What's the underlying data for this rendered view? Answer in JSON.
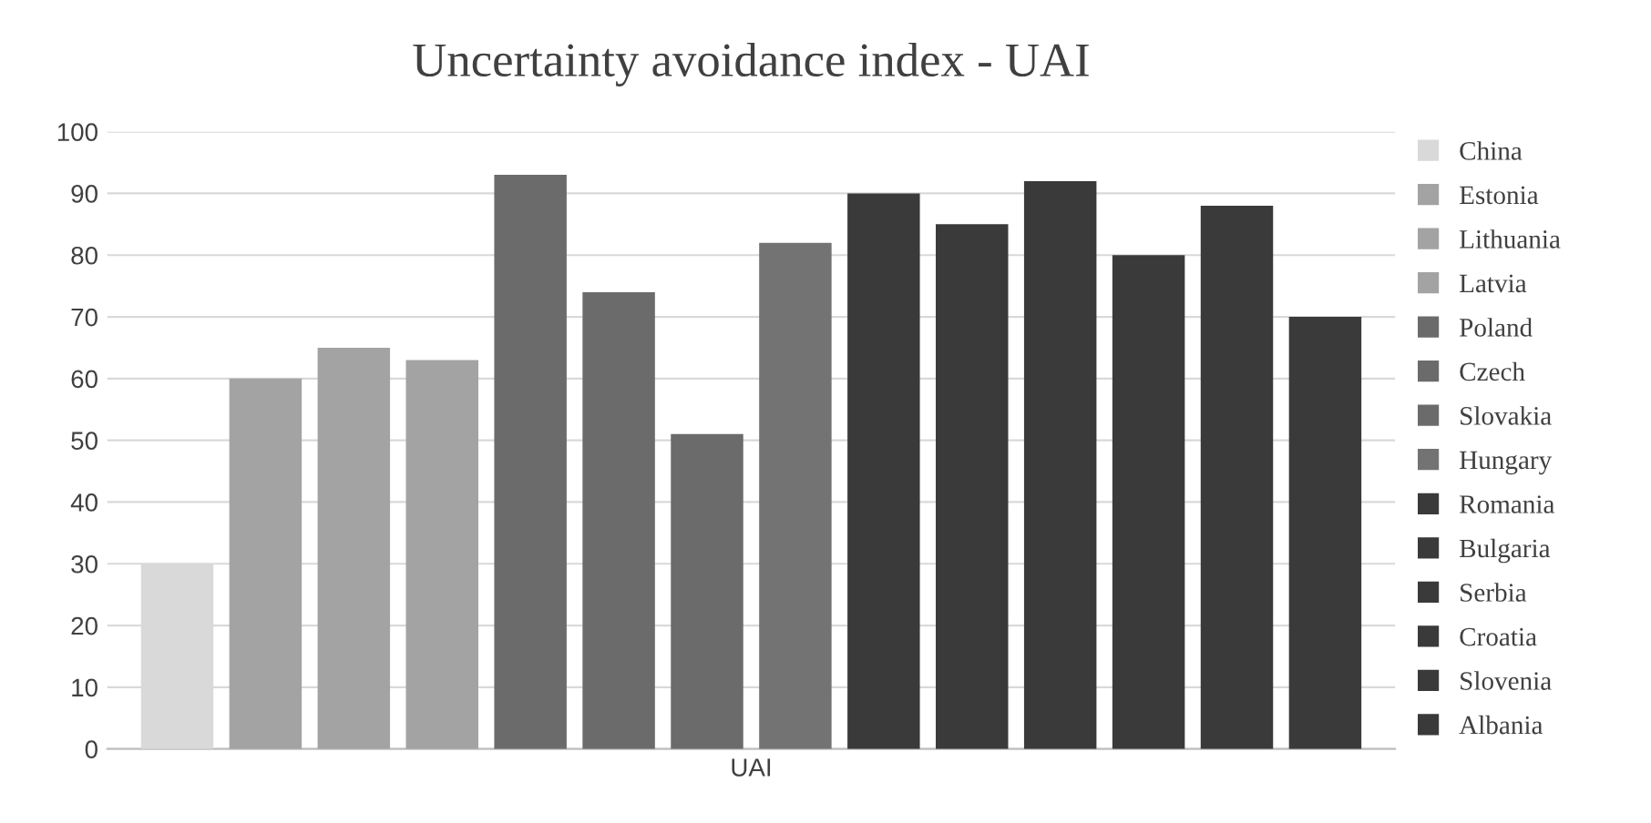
{
  "chart_data": {
    "type": "bar",
    "title": "Uncertainty avoidance index - UAI",
    "categories": [
      "UAI"
    ],
    "series": [
      {
        "name": "China",
        "color": "#d9d9d9",
        "values": [
          30
        ]
      },
      {
        "name": "Estonia",
        "color": "#a3a3a3",
        "values": [
          60
        ]
      },
      {
        "name": "Lithuania",
        "color": "#a3a3a3",
        "values": [
          65
        ]
      },
      {
        "name": "Latvia",
        "color": "#a3a3a3",
        "values": [
          63
        ]
      },
      {
        "name": "Poland",
        "color": "#6b6b6b",
        "values": [
          93
        ]
      },
      {
        "name": "Czech",
        "color": "#6b6b6b",
        "values": [
          74
        ]
      },
      {
        "name": "Slovakia",
        "color": "#6b6b6b",
        "values": [
          51
        ]
      },
      {
        "name": "Hungary",
        "color": "#737373",
        "values": [
          82
        ]
      },
      {
        "name": "Romania",
        "color": "#3a3a3a",
        "values": [
          90
        ]
      },
      {
        "name": "Bulgaria",
        "color": "#3a3a3a",
        "values": [
          85
        ]
      },
      {
        "name": "Serbia",
        "color": "#3a3a3a",
        "values": [
          92
        ]
      },
      {
        "name": "Croatia",
        "color": "#3a3a3a",
        "values": [
          80
        ]
      },
      {
        "name": "Slovenia",
        "color": "#3a3a3a",
        "values": [
          88
        ]
      },
      {
        "name": "Albania",
        "color": "#3a3a3a",
        "values": [
          70
        ]
      }
    ],
    "ylim": [
      0,
      100
    ],
    "yticks": [
      0,
      10,
      20,
      30,
      40,
      50,
      60,
      70,
      80,
      90,
      100
    ],
    "grid": "y",
    "legend": "right"
  }
}
